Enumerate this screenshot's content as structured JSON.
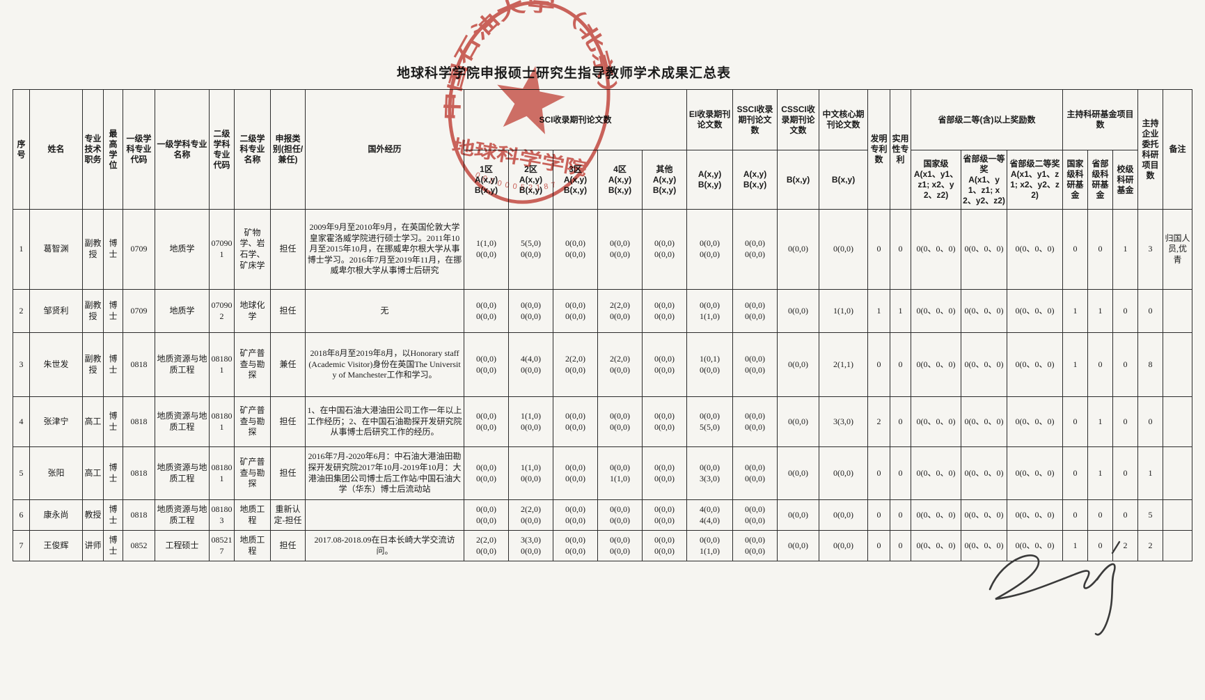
{
  "title": "地球科学学院申报硕士研究生指导教师学术成果汇总表",
  "stamp": {
    "arc_text": "中国石油大学（北京）",
    "center_text": "地球科学学院",
    "serial": "00000052187",
    "color": "#c43a31"
  },
  "header": {
    "seq": "序号",
    "name": "姓名",
    "job": "专业技术职务",
    "degree": "最高学位",
    "code1": "一级学科专业代码",
    "major1": "一级学科专业名称",
    "code2": "二级学科专业代码",
    "major2": "二级学科专业名称",
    "type": "申报类别(担任/兼任)",
    "overseas": "国外经历",
    "sci_group": "SCI收录期刊论文数",
    "sci1": "1区\nA(x,y)\nB(x,y)",
    "sci2": "2区\nA(x,y)\nB(x,y)",
    "sci3": "3区\nA(x,y)\nB(x,y)",
    "sci4": "4区\nA(x,y)\nB(x,y)",
    "sciOther": "其他\nA(x,y)\nB(x,y)",
    "ei": "EI收录期刊论文数",
    "ei_sub": "A(x,y)\nB(x,y)",
    "ssci": "SSCI收录期刊论文数",
    "ssci_sub": "A(x,y)\nB(x,y)",
    "cssci": "CSSCI收录期刊论文数",
    "cssci_sub": "B(x,y)",
    "core": "中文核心期刊论文数",
    "core_sub": "B(x,y)",
    "invention": "发明专利数",
    "utility": "实用性专利",
    "award_group": "省部级二等(含)以上奖励数",
    "award_nat": "国家级\nA(x1、y1、z1; x2、y2、z2)",
    "award_p1": "省部级一等奖\nA(x1、y1、z1; x2、y2、z2)",
    "award_p2": "省部级二等奖\nA(x1、y1、z1; x2、y2、z2)",
    "fund_group": "主持科研基金项目数",
    "fund_nat": "国家级科研基金",
    "fund_prov": "省部级科研基金",
    "fund_school": "校级科研基金",
    "enterprise": "主持企业委托科研项目数",
    "remark": "备注"
  },
  "rows": [
    {
      "no": "1",
      "name": "葛智渊",
      "job": "副教授",
      "degree": "博士",
      "code1": "0709",
      "major1": "地质学",
      "code2": "070901",
      "major2": "矿物学、岩石学、矿床学",
      "type": "担任",
      "overseas": "2009年9月至2010年9月，在英国伦敦大学皇家霍洛威学院进行硕士学习。2011年10月至2015年10月，在挪威卑尔根大学从事博士学习。2016年7月至2019年11月，在挪威卑尔根大学从事博士后研究",
      "sci1": "1(1,0)\n0(0,0)",
      "sci2": "5(5,0)\n0(0,0)",
      "sci3": "0(0,0)\n0(0,0)",
      "sci4": "0(0,0)\n0(0,0)",
      "sciOther": "0(0,0)\n0(0,0)",
      "ei": "0(0,0)\n0(0,0)",
      "ssci": "0(0,0)\n0(0,0)",
      "cssci": "0(0,0)",
      "core": "0(0,0)",
      "invention": "0",
      "utility": "0",
      "awardNat": "0(0、0、0)",
      "awardP1": "0(0、0、0)",
      "awardP2": "0(0、0、0)",
      "fundNat": "0",
      "fundProv": "0",
      "fundSchool": "1",
      "enterprise": "3",
      "remark": "归国人员,优青"
    },
    {
      "no": "2",
      "name": "邹贤利",
      "job": "副教授",
      "degree": "博士",
      "code1": "0709",
      "major1": "地质学",
      "code2": "070902",
      "major2": "地球化学",
      "type": "担任",
      "overseas": "无",
      "sci1": "0(0,0)\n0(0,0)",
      "sci2": "0(0,0)\n0(0,0)",
      "sci3": "0(0,0)\n0(0,0)",
      "sci4": "2(2,0)\n0(0,0)",
      "sciOther": "0(0,0)\n0(0,0)",
      "ei": "0(0,0)\n1(1,0)",
      "ssci": "0(0,0)\n0(0,0)",
      "cssci": "0(0,0)",
      "core": "1(1,0)",
      "invention": "1",
      "utility": "1",
      "awardNat": "0(0、0、0)",
      "awardP1": "0(0、0、0)",
      "awardP2": "0(0、0、0)",
      "fundNat": "1",
      "fundProv": "1",
      "fundSchool": "0",
      "enterprise": "0",
      "remark": ""
    },
    {
      "no": "3",
      "name": "朱世发",
      "job": "副教授",
      "degree": "博士",
      "code1": "0818",
      "major1": "地质资源与地质工程",
      "code2": "081801",
      "major2": "矿产普查与勘探",
      "type": "兼任",
      "overseas": "2018年8月至2019年8月，以Honorary staff (Academic Visitor)身份在英国The University of Manchester工作和学习。",
      "sci1": "0(0,0)\n0(0,0)",
      "sci2": "4(4,0)\n0(0,0)",
      "sci3": "2(2,0)\n0(0,0)",
      "sci4": "2(2,0)\n0(0,0)",
      "sciOther": "0(0,0)\n0(0,0)",
      "ei": "1(0,1)\n0(0,0)",
      "ssci": "0(0,0)\n0(0,0)",
      "cssci": "0(0,0)",
      "core": "2(1,1)",
      "invention": "0",
      "utility": "0",
      "awardNat": "0(0、0、0)",
      "awardP1": "0(0、0、0)",
      "awardP2": "0(0、0、0)",
      "fundNat": "1",
      "fundProv": "0",
      "fundSchool": "0",
      "enterprise": "8",
      "remark": ""
    },
    {
      "no": "4",
      "name": "张津宁",
      "job": "高工",
      "degree": "博士",
      "code1": "0818",
      "major1": "地质资源与地质工程",
      "code2": "081801",
      "major2": "矿产普查与勘探",
      "type": "担任",
      "overseas": "1、在中国石油大港油田公司工作一年以上工作经历；2、在中国石油勘探开发研究院从事博士后研究工作的经历。",
      "sci1": "0(0,0)\n0(0,0)",
      "sci2": "1(1,0)\n0(0,0)",
      "sci3": "0(0,0)\n0(0,0)",
      "sci4": "0(0,0)\n0(0,0)",
      "sciOther": "0(0,0)\n0(0,0)",
      "ei": "0(0,0)\n5(5,0)",
      "ssci": "0(0,0)\n0(0,0)",
      "cssci": "0(0,0)",
      "core": "3(3,0)",
      "invention": "2",
      "utility": "0",
      "awardNat": "0(0、0、0)",
      "awardP1": "0(0、0、0)",
      "awardP2": "0(0、0、0)",
      "fundNat": "0",
      "fundProv": "1",
      "fundSchool": "0",
      "enterprise": "0",
      "remark": ""
    },
    {
      "no": "5",
      "name": "张阳",
      "job": "高工",
      "degree": "博士",
      "code1": "0818",
      "major1": "地质资源与地质工程",
      "code2": "081801",
      "major2": "矿产普查与勘探",
      "type": "担任",
      "overseas": "2016年7月-2020年6月：中石油大港油田勘探开发研究院2017年10月-2019年10月：大港油田集团公司博士后工作站/中国石油大学（华东）博士后流动站",
      "sci1": "0(0,0)\n0(0,0)",
      "sci2": "1(1,0)\n0(0,0)",
      "sci3": "0(0,0)\n0(0,0)",
      "sci4": "0(0,0)\n1(1,0)",
      "sciOther": "0(0,0)\n0(0,0)",
      "ei": "0(0,0)\n3(3,0)",
      "ssci": "0(0,0)\n0(0,0)",
      "cssci": "0(0,0)",
      "core": "0(0,0)",
      "invention": "0",
      "utility": "0",
      "awardNat": "0(0、0、0)",
      "awardP1": "0(0、0、0)",
      "awardP2": "0(0、0、0)",
      "fundNat": "0",
      "fundProv": "1",
      "fundSchool": "0",
      "enterprise": "1",
      "remark": ""
    },
    {
      "no": "6",
      "name": "康永尚",
      "job": "教授",
      "degree": "博士",
      "code1": "0818",
      "major1": "地质资源与地质工程",
      "code2": "081803",
      "major2": "地质工程",
      "type": "重新认定-担任",
      "overseas": "",
      "sci1": "0(0,0)\n0(0,0)",
      "sci2": "2(2,0)\n0(0,0)",
      "sci3": "0(0,0)\n0(0,0)",
      "sci4": "0(0,0)\n0(0,0)",
      "sciOther": "0(0,0)\n0(0,0)",
      "ei": "4(0,0)\n4(4,0)",
      "ssci": "0(0,0)\n0(0,0)",
      "cssci": "0(0,0)",
      "core": "0(0,0)",
      "invention": "0",
      "utility": "0",
      "awardNat": "0(0、0、0)",
      "awardP1": "0(0、0、0)",
      "awardP2": "0(0、0、0)",
      "fundNat": "0",
      "fundProv": "0",
      "fundSchool": "0",
      "enterprise": "5",
      "remark": ""
    },
    {
      "no": "7",
      "name": "王俊辉",
      "job": "讲师",
      "degree": "博士",
      "code1": "0852",
      "major1": "工程硕士",
      "code2": "085217",
      "major2": "地质工程",
      "type": "担任",
      "overseas": "2017.08-2018.09在日本长崎大学交流访问。",
      "sci1": "2(2,0)\n0(0,0)",
      "sci2": "3(3,0)\n0(0,0)",
      "sci3": "0(0,0)\n0(0,0)",
      "sci4": "0(0,0)\n0(0,0)",
      "sciOther": "0(0,0)\n0(0,0)",
      "ei": "0(0,0)\n1(1,0)",
      "ssci": "0(0,0)\n0(0,0)",
      "cssci": "0(0,0)",
      "core": "0(0,0)",
      "invention": "0",
      "utility": "0",
      "awardNat": "0(0、0、0)",
      "awardP1": "0(0、0、0)",
      "awardP2": "0(0、0、0)",
      "fundNat": "1",
      "fundProv": "0",
      "fundSchool": "2",
      "enterprise": "2",
      "remark": ""
    }
  ]
}
